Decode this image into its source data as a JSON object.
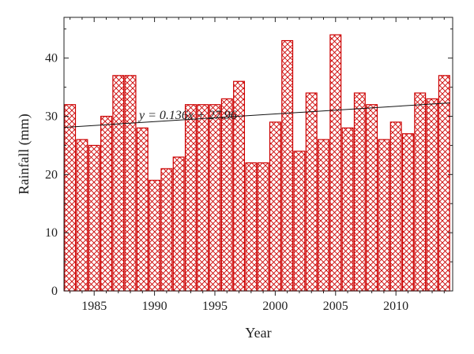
{
  "chart_data": {
    "type": "bar",
    "title": "",
    "xlabel": "Year",
    "ylabel": "Rainfall (mm)",
    "x": [
      1983,
      1984,
      1985,
      1986,
      1987,
      1988,
      1989,
      1990,
      1991,
      1992,
      1993,
      1994,
      1995,
      1996,
      1997,
      1998,
      1999,
      2000,
      2001,
      2002,
      2003,
      2004,
      2005,
      2006,
      2007,
      2008,
      2009,
      2010,
      2011,
      2012,
      2013,
      2014
    ],
    "values": [
      32,
      26,
      25,
      30,
      37,
      37,
      28,
      19,
      21,
      23,
      32,
      32,
      32,
      33,
      36,
      22,
      22,
      29,
      43,
      24,
      34,
      26,
      44,
      28,
      34,
      32,
      26,
      29,
      27,
      34,
      33,
      37
    ],
    "ylim": [
      0,
      47
    ],
    "xlim": [
      1982.5,
      2014.7
    ],
    "yticks": [
      0,
      10,
      20,
      30,
      40
    ],
    "xticks": [
      1985,
      1990,
      1995,
      2000,
      2005,
      2010
    ],
    "ytick_labels": [
      "0",
      "10",
      "20",
      "30",
      "40"
    ],
    "xtick_labels": [
      "1985",
      "1990",
      "1995",
      "2000",
      "2005",
      "2010"
    ],
    "bar_color": "#cc0000",
    "bar_pattern": "crosshatch",
    "grid": false,
    "trendline": {
      "slope": 0.136,
      "intercept": 27.96,
      "x_start": 1983,
      "x_end": 2014,
      "label": "y = 0.136x + 27.96"
    }
  }
}
